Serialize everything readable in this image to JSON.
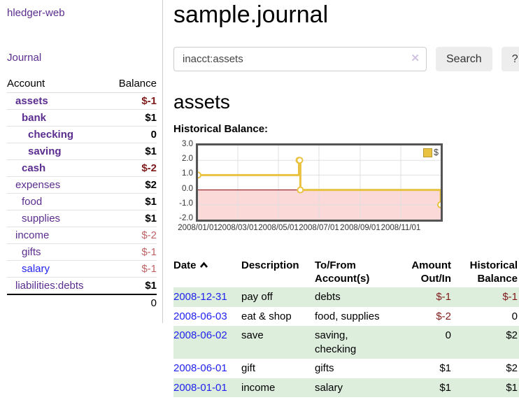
{
  "app": {
    "brand": "hledger-web",
    "nav_journal": "Journal"
  },
  "sidebar": {
    "header": {
      "account": "Account",
      "balance": "Balance"
    },
    "accounts": [
      {
        "name": "assets",
        "depth": 1,
        "balance": "$-1"
      },
      {
        "name": "bank",
        "depth": 2,
        "balance": "$1"
      },
      {
        "name": "checking",
        "depth": 3,
        "balance": "0"
      },
      {
        "name": "saving",
        "depth": 3,
        "balance": "$1"
      },
      {
        "name": "cash",
        "depth": 2,
        "balance": "$-2"
      },
      {
        "name": "expenses",
        "depth": 1,
        "balance": "$2"
      },
      {
        "name": "food",
        "depth": 2,
        "balance": "$1"
      },
      {
        "name": "supplies",
        "depth": 2,
        "balance": "$1"
      },
      {
        "name": "income",
        "depth": 1,
        "balance": "$-2"
      },
      {
        "name": "gifts",
        "depth": 2,
        "balance": "$-1"
      },
      {
        "name": "salary",
        "depth": 2,
        "balance": "$-1"
      },
      {
        "name": "liabilities:debts",
        "depth": 1,
        "balance": "$1"
      }
    ],
    "total": "0"
  },
  "header": {
    "title": "sample.journal"
  },
  "search": {
    "value": "inacct:assets",
    "clear_icon": "✕",
    "button": "Search",
    "help_button": "?"
  },
  "account_page": {
    "heading": "assets",
    "chart_label": "Historical Balance:"
  },
  "chart_data": {
    "type": "line-step",
    "title": "Historical Balance:",
    "xrange": [
      "2008-01-01",
      "2008-12-31"
    ],
    "ylim": [
      -2,
      3
    ],
    "grid": true,
    "legend_position": "top-right",
    "negative_region_color": "#fbd9d9",
    "zero_line_color": "#8b0000",
    "grid_color": "#e0e0e0",
    "yticks": [
      {
        "v": 3,
        "label": "3.0"
      },
      {
        "v": 2,
        "label": "2.0"
      },
      {
        "v": 1,
        "label": "1.0"
      },
      {
        "v": 0,
        "label": "0.0"
      },
      {
        "v": -1,
        "label": "-1.0"
      },
      {
        "v": -2,
        "label": "-2.0"
      }
    ],
    "xticks": [
      {
        "date": "2008-01-01",
        "label": "2008/01/01"
      },
      {
        "date": "2008-03-01",
        "label": "2008/03/01"
      },
      {
        "date": "2008-05-01",
        "label": "2008/05/01"
      },
      {
        "date": "2008-07-01",
        "label": "2008/07/01"
      },
      {
        "date": "2008-09-01",
        "label": "2008/09/01"
      },
      {
        "date": "2008-11-01",
        "label": "2008/11/01"
      }
    ],
    "series": [
      {
        "name": "$",
        "color": "#e8c240",
        "points": [
          [
            "2008-01-01",
            1
          ],
          [
            "2008-06-01",
            2
          ],
          [
            "2008-06-02",
            2
          ],
          [
            "2008-06-03",
            0
          ],
          [
            "2008-12-31",
            -1
          ]
        ]
      }
    ]
  },
  "register": {
    "columns": {
      "date": "Date",
      "description": "Description",
      "accounts": "To/From Account(s)",
      "amount": "Amount Out/In",
      "balance": "Historical Balance"
    },
    "rows": [
      {
        "date": "2008-12-31",
        "description": "pay off",
        "accounts": "debts",
        "amount": "$-1",
        "balance": "$-1"
      },
      {
        "date": "2008-06-03",
        "description": "eat & shop",
        "accounts": "food, supplies",
        "amount": "$-2",
        "balance": "0"
      },
      {
        "date": "2008-06-02",
        "description": "save",
        "accounts": "saving, checking",
        "amount": "0",
        "balance": "$2"
      },
      {
        "date": "2008-06-01",
        "description": "gift",
        "accounts": "gifts",
        "amount": "$1",
        "balance": "$2"
      },
      {
        "date": "2008-01-01",
        "description": "income",
        "accounts": "salary",
        "amount": "$1",
        "balance": "$1"
      }
    ]
  }
}
